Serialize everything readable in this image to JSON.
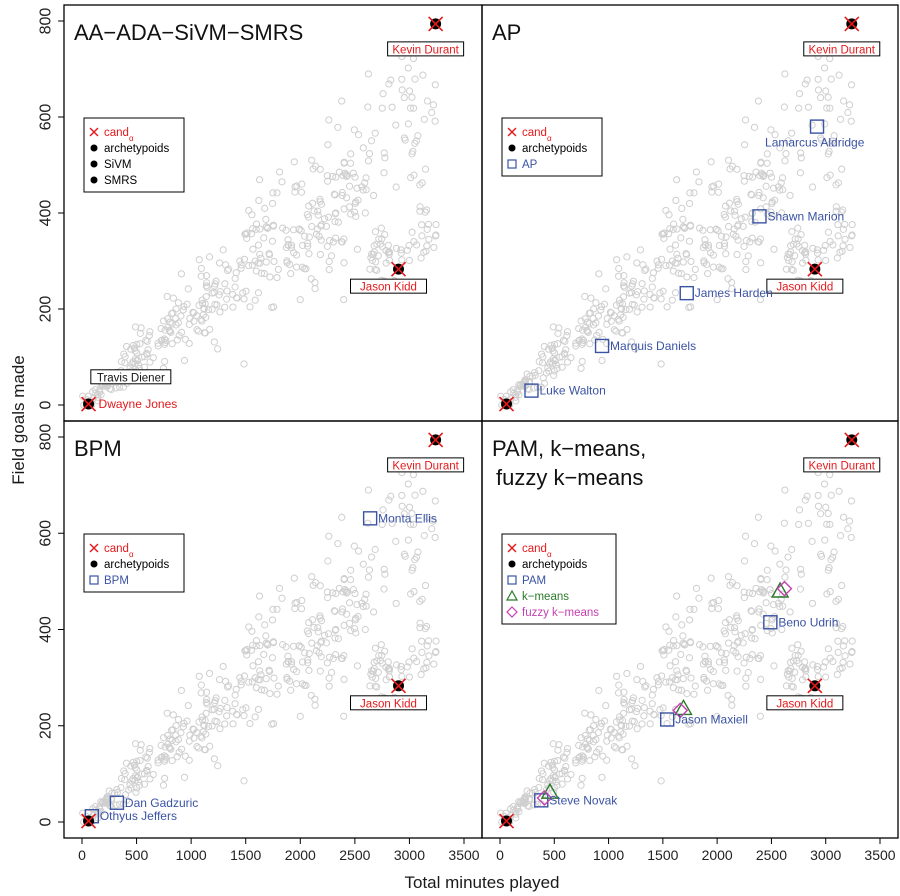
{
  "figure": {
    "ylabel": "Field goals made",
    "xlabel": "Total minutes played"
  },
  "colors": {
    "cand": "#e41a1c",
    "arch": "#000000",
    "blue": "#3a53a4",
    "green": "#2a7a2a",
    "magenta": "#c43fb0",
    "cloud": "#cfcfcf"
  },
  "chart_data": [
    {
      "type": "scatter",
      "title": "AA−ADA−SiVM−SMRS",
      "xlim": [
        0,
        3500
      ],
      "ylim": [
        0,
        800
      ],
      "xticks": [],
      "yticks": [
        "0",
        "200",
        "400",
        "600",
        "800"
      ],
      "legend": {
        "position": "left",
        "entries": [
          {
            "label": "cand",
            "sub": "α",
            "symbol": "cross",
            "color": "#e41a1c"
          },
          {
            "label": "archetypoids",
            "symbol": "dot",
            "color": "#000000"
          },
          {
            "label": "SiVM",
            "symbol": "dot",
            "color": "#000000"
          },
          {
            "label": "SMRS",
            "symbol": "dot",
            "color": "#000000"
          }
        ]
      },
      "points": [
        {
          "name": "Kevin Durant",
          "x": 3240,
          "y": 794,
          "mark": "both",
          "color": "#e41a1c"
        },
        {
          "name": "Jason Kidd",
          "x": 2900,
          "y": 283,
          "mark": "both",
          "color": "#e41a1c"
        },
        {
          "name": "Dwayne Jones",
          "x": 60,
          "y": 2,
          "mark": "both",
          "color": "#e41a1c"
        },
        {
          "name": "Travis Diener",
          "x": 90,
          "y": 40,
          "mark": "none",
          "color": "#000000"
        }
      ]
    },
    {
      "type": "scatter",
      "title": "AP",
      "xlim": [
        0,
        3500
      ],
      "ylim": [
        0,
        800
      ],
      "xticks": [],
      "yticks": [],
      "legend": {
        "position": "left",
        "entries": [
          {
            "label": "cand",
            "sub": "α",
            "symbol": "cross",
            "color": "#e41a1c"
          },
          {
            "label": "archetypoids",
            "symbol": "dot",
            "color": "#000000"
          },
          {
            "label": "AP",
            "symbol": "square",
            "color": "#3a53a4"
          }
        ]
      },
      "points": [
        {
          "name": "Kevin Durant",
          "x": 3240,
          "y": 794,
          "mark": "both",
          "color": "#e41a1c"
        },
        {
          "name": "Jason Kidd",
          "x": 2900,
          "y": 283,
          "mark": "both",
          "color": "#e41a1c"
        },
        {
          "name": "Lamarcus Aldridge",
          "x": 2920,
          "y": 580,
          "mark": "square",
          "color": "#3a53a4"
        },
        {
          "name": "Shawn Marion",
          "x": 2390,
          "y": 393,
          "mark": "square",
          "color": "#3a53a4"
        },
        {
          "name": "James Harden",
          "x": 1720,
          "y": 233,
          "mark": "square",
          "color": "#3a53a4"
        },
        {
          "name": "Marquis Daniels",
          "x": 940,
          "y": 123,
          "mark": "square",
          "color": "#3a53a4"
        },
        {
          "name": "Luke Walton",
          "x": 290,
          "y": 30,
          "mark": "square",
          "color": "#3a53a4"
        },
        {
          "name": "",
          "x": 60,
          "y": 2,
          "mark": "both",
          "color": "#e41a1c"
        }
      ]
    },
    {
      "type": "scatter",
      "title": "BPM",
      "xlim": [
        0,
        3500
      ],
      "ylim": [
        0,
        800
      ],
      "xticks": [
        "0",
        "500",
        "1000",
        "1500",
        "2000",
        "2500",
        "3000",
        "3500"
      ],
      "yticks": [
        "0",
        "200",
        "400",
        "600",
        "800"
      ],
      "legend": {
        "position": "left",
        "entries": [
          {
            "label": "cand",
            "sub": "α",
            "symbol": "cross",
            "color": "#e41a1c"
          },
          {
            "label": "archetypoids",
            "symbol": "dot",
            "color": "#000000"
          },
          {
            "label": "BPM",
            "symbol": "square",
            "color": "#3a53a4"
          }
        ]
      },
      "points": [
        {
          "name": "Kevin Durant",
          "x": 3240,
          "y": 794,
          "mark": "both",
          "color": "#e41a1c"
        },
        {
          "name": "Jason Kidd",
          "x": 2900,
          "y": 283,
          "mark": "both",
          "color": "#e41a1c"
        },
        {
          "name": "Monta Ellis",
          "x": 2640,
          "y": 631,
          "mark": "square",
          "color": "#3a53a4"
        },
        {
          "name": "Dan Gadzuric",
          "x": 320,
          "y": 40,
          "mark": "square",
          "color": "#3a53a4"
        },
        {
          "name": "Othyus Jeffers",
          "x": 90,
          "y": 12,
          "mark": "square",
          "color": "#3a53a4"
        },
        {
          "name": "",
          "x": 60,
          "y": 2,
          "mark": "both",
          "color": "#e41a1c"
        }
      ]
    },
    {
      "type": "scatter",
      "title": "PAM, k−means,",
      "title2": "fuzzy k−means",
      "xlim": [
        0,
        3500
      ],
      "ylim": [
        0,
        800
      ],
      "xticks": [
        "0",
        "500",
        "1000",
        "1500",
        "2000",
        "2500",
        "3000",
        "3500"
      ],
      "yticks": [],
      "legend": {
        "position": "left",
        "entries": [
          {
            "label": "cand",
            "sub": "α",
            "symbol": "cross",
            "color": "#e41a1c"
          },
          {
            "label": "archetypoids",
            "symbol": "dot",
            "color": "#000000"
          },
          {
            "label": "PAM",
            "symbol": "square",
            "color": "#3a53a4"
          },
          {
            "label": "k−means",
            "symbol": "triangle",
            "color": "#2a7a2a"
          },
          {
            "label": "fuzzy k−means",
            "symbol": "diamond",
            "color": "#c43fb0"
          }
        ]
      },
      "points": [
        {
          "name": "Kevin Durant",
          "x": 3240,
          "y": 794,
          "mark": "both",
          "color": "#e41a1c"
        },
        {
          "name": "Jason Kidd",
          "x": 2900,
          "y": 283,
          "mark": "both",
          "color": "#e41a1c"
        },
        {
          "name": "Beno Udrih",
          "x": 2490,
          "y": 415,
          "mark": "square",
          "color": "#3a53a4"
        },
        {
          "name": "Jason Maxiell",
          "x": 1540,
          "y": 213,
          "mark": "square",
          "color": "#3a53a4"
        },
        {
          "name": "Steve Novak",
          "x": 380,
          "y": 45,
          "mark": "square",
          "color": "#3a53a4"
        },
        {
          "name": "",
          "x": 2580,
          "y": 480,
          "mark": "triangle",
          "color": "#2a7a2a"
        },
        {
          "name": "",
          "x": 2620,
          "y": 485,
          "mark": "diamond",
          "color": "#c43fb0"
        },
        {
          "name": "",
          "x": 1690,
          "y": 236,
          "mark": "triangle",
          "color": "#2a7a2a"
        },
        {
          "name": "",
          "x": 1660,
          "y": 232,
          "mark": "diamond",
          "color": "#c43fb0"
        },
        {
          "name": "",
          "x": 460,
          "y": 62,
          "mark": "triangle",
          "color": "#2a7a2a"
        },
        {
          "name": "",
          "x": 410,
          "y": 50,
          "mark": "diamond",
          "color": "#c43fb0"
        },
        {
          "name": "",
          "x": 60,
          "y": 2,
          "mark": "both",
          "color": "#e41a1c"
        }
      ]
    }
  ]
}
